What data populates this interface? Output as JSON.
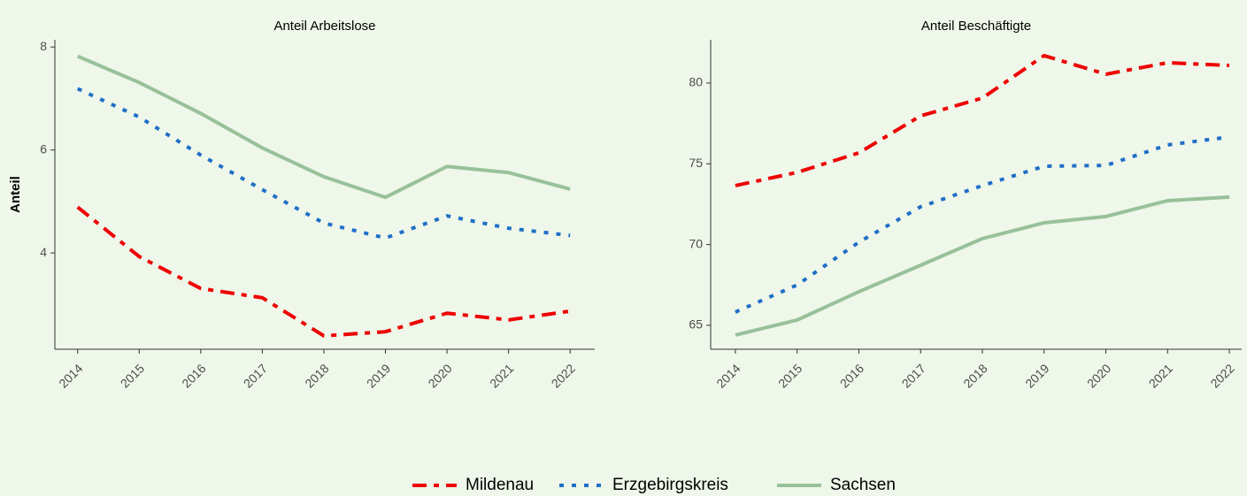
{
  "chart_data": [
    {
      "type": "line",
      "title": "Anteil Arbeitslose",
      "y_label": "Anteil",
      "x": [
        2014,
        2015,
        2016,
        2017,
        2018,
        2019,
        2020,
        2021,
        2022
      ],
      "xlim": [
        2013.63,
        2022.4
      ],
      "xticks": [
        2014,
        2015,
        2016,
        2017,
        2018,
        2019,
        2020,
        2021,
        2022
      ],
      "ylim": [
        2.13,
        8.14
      ],
      "yticks": [
        4,
        6,
        8
      ],
      "series": [
        {
          "name": "Mildenau",
          "color": "#ee0000",
          "dash": "dashdot",
          "values": [
            4.89,
            3.93,
            3.31,
            3.13,
            2.39,
            2.47,
            2.83,
            2.7,
            2.87
          ]
        },
        {
          "name": "Erzgebirgskreis",
          "color": "#1f6fc6",
          "dash": "dotted",
          "values": [
            7.19,
            6.64,
            5.9,
            5.23,
            4.58,
            4.29,
            4.72,
            4.48,
            4.34
          ]
        },
        {
          "name": "Sachsen",
          "color": "#98c19a",
          "dash": "solid",
          "values": [
            7.82,
            7.31,
            6.71,
            6.04,
            5.48,
            5.08,
            5.68,
            5.56,
            5.24
          ]
        }
      ]
    },
    {
      "type": "line",
      "title": "Anteil Beschäftigte",
      "x": [
        2014,
        2015,
        2016,
        2017,
        2018,
        2019,
        2020,
        2021,
        2022
      ],
      "xlim": [
        2013.6,
        2022.2
      ],
      "xticks": [
        2014,
        2015,
        2016,
        2017,
        2018,
        2019,
        2020,
        2021,
        2022
      ],
      "ylim": [
        63.52,
        82.68
      ],
      "yticks": [
        65,
        70,
        75,
        80
      ],
      "series": [
        {
          "name": "Mildenau",
          "color": "#ee0000",
          "dash": "dashdot",
          "values": [
            73.65,
            74.47,
            75.68,
            77.97,
            79.07,
            81.7,
            80.55,
            81.26,
            81.09
          ]
        },
        {
          "name": "Erzgebirgskreis",
          "color": "#1f6fc6",
          "dash": "dotted",
          "values": [
            65.82,
            67.5,
            70.15,
            72.34,
            73.65,
            74.85,
            74.9,
            76.17,
            76.66
          ]
        },
        {
          "name": "Sachsen",
          "color": "#98c19a",
          "dash": "solid",
          "values": [
            64.4,
            65.33,
            67.08,
            68.72,
            70.37,
            71.35,
            71.74,
            72.72,
            72.94
          ]
        }
      ]
    }
  ]
}
